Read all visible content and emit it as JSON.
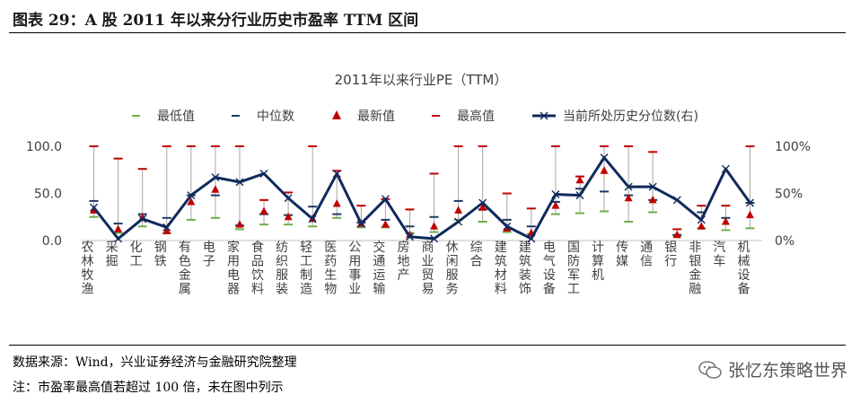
{
  "figure": {
    "title": "图表 29：A 股 2011 年以来分行业历史市盈率  TTM 区间",
    "source": "数据来源：Wind，兴业证券经济与金融研究院整理",
    "note": "注：市盈率最高值若超过 100 倍，未在图中列示",
    "brand": "张忆东策略世界"
  },
  "colors": {
    "min": "#70ad47",
    "median": "#1f3864",
    "latest": "#c00000",
    "max": "#c00000",
    "percentile": "#0f2a5c"
  },
  "chart_data": {
    "type": "line",
    "title": "2011年以来行业PE（TTM）",
    "legend": [
      "最低值",
      "中位数",
      "最新值",
      "最高值",
      "当前所处历史分位数(右)"
    ],
    "legend_position": "top",
    "y_left": {
      "lim": [
        0,
        100
      ],
      "ticks": [
        "0.0",
        "50.0",
        "100.0"
      ]
    },
    "y_right": {
      "lim": [
        0,
        100
      ],
      "ticks": [
        "0%",
        "50%",
        "100%"
      ]
    },
    "categories": [
      "农林牧渔",
      "采掘",
      "化工",
      "钢铁",
      "有色金属",
      "电子",
      "家用电器",
      "食品饮料",
      "纺织服装",
      "轻工制造",
      "医药生物",
      "公用事业",
      "交通运输",
      "房地产",
      "商业贸易",
      "休闲服务",
      "综合",
      "建筑材料",
      "建筑装饰",
      "电气设备",
      "国防军工",
      "计算机",
      "传媒",
      "通信",
      "银行",
      "非银金融",
      "汽车",
      "机械设备"
    ],
    "series": [
      {
        "name": "最低值",
        "values": [
          25,
          8,
          15,
          8,
          22,
          24,
          12,
          17,
          17,
          15,
          24,
          14,
          14,
          8,
          9,
          22,
          20,
          9,
          7,
          28,
          29,
          31,
          20,
          30,
          5,
          13,
          11,
          13
        ]
      },
      {
        "name": "中位数",
        "values": [
          42,
          18,
          28,
          24,
          48,
          48,
          16,
          28,
          27,
          36,
          28,
          19,
          22,
          15,
          25,
          42,
          33,
          22,
          15,
          41,
          55,
          52,
          48,
          43,
          6,
          30,
          24,
          40
        ]
      },
      {
        "name": "最新值",
        "values": [
          32,
          12,
          24,
          10,
          41,
          54,
          17,
          31,
          25,
          23,
          39,
          18,
          17,
          6,
          15,
          32,
          35,
          13,
          8,
          37,
          64,
          74,
          45,
          43,
          6,
          15,
          20,
          27
        ]
      },
      {
        "name": "最高值",
        "values": [
          100,
          87,
          76,
          100,
          100,
          100,
          100,
          43,
          51,
          100,
          74,
          37,
          44,
          33,
          71,
          100,
          100,
          50,
          34,
          100,
          68,
          100,
          100,
          94,
          12,
          37,
          37,
          100
        ]
      },
      {
        "name": "当前所处历史分位数(右)",
        "values": [
          35,
          2,
          23,
          14,
          48,
          67,
          62,
          71,
          45,
          23,
          71,
          18,
          44,
          4,
          2,
          20,
          40,
          15,
          2,
          49,
          48,
          88,
          57,
          57,
          43,
          22,
          76,
          40
        ]
      }
    ]
  }
}
